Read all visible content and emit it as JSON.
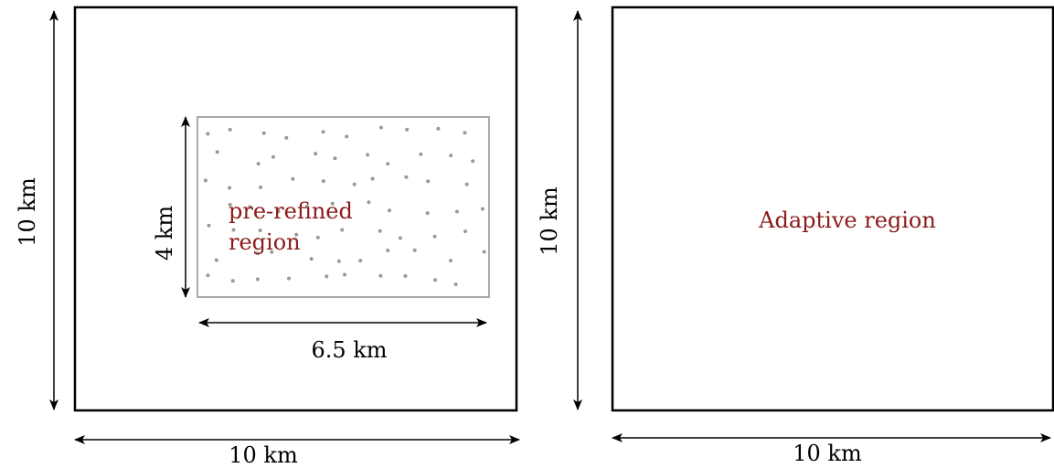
{
  "left_panel": {
    "outer_height_label": "10 km",
    "outer_width_label": "10 km",
    "inner_height_label": "4 km",
    "inner_width_label": "6.5 km",
    "region_label_line1": "pre-refined",
    "region_label_line2": "region"
  },
  "right_panel": {
    "height_label": "10 km",
    "width_label": "10 km",
    "region_label": "Adaptive region"
  },
  "colors": {
    "region_text": "#8b1a1a",
    "inner_box_stroke": "#aaaaaa",
    "dots": "#999999"
  }
}
